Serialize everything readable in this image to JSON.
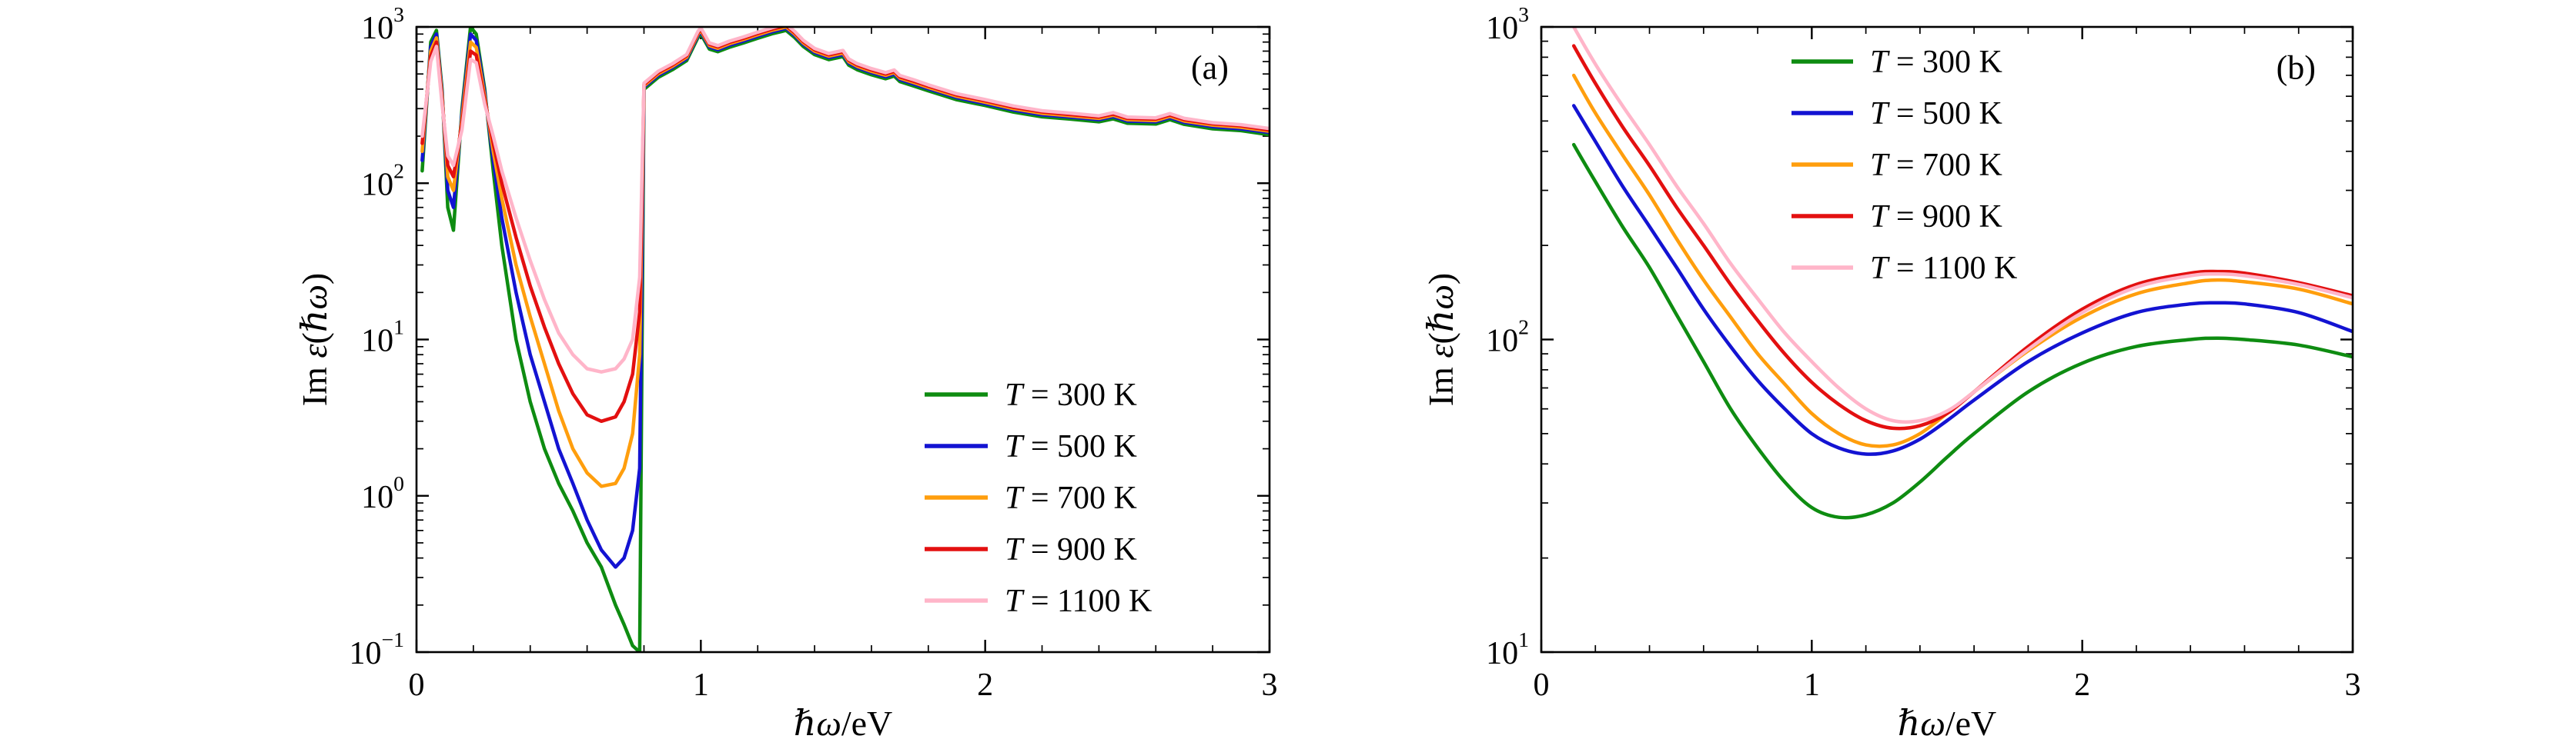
{
  "figure": {
    "background": "#ffffff",
    "axis_color": "#000000"
  },
  "chart_data": [
    {
      "type": "line",
      "panel_label": "(a)",
      "title": "",
      "xlabel": "ℏω/eV",
      "ylabel": "Im ε(ℏω)",
      "xlim": [
        0,
        3
      ],
      "ylim": [
        0.1,
        1000
      ],
      "yscale": "log",
      "x_ticks": [
        0,
        1,
        2,
        3
      ],
      "x_minor_step": 0.2,
      "grid": false,
      "legend_position": "center-right",
      "x": [
        0.02,
        0.05,
        0.07,
        0.09,
        0.11,
        0.13,
        0.16,
        0.19,
        0.21,
        0.24,
        0.27,
        0.3,
        0.35,
        0.4,
        0.45,
        0.5,
        0.55,
        0.6,
        0.65,
        0.7,
        0.73,
        0.76,
        0.785,
        0.8,
        0.85,
        0.9,
        0.95,
        0.99,
        1.0,
        1.03,
        1.06,
        1.1,
        1.15,
        1.2,
        1.25,
        1.3,
        1.33,
        1.36,
        1.4,
        1.45,
        1.5,
        1.52,
        1.55,
        1.6,
        1.65,
        1.68,
        1.7,
        1.75,
        1.8,
        1.9,
        2.0,
        2.1,
        2.2,
        2.3,
        2.4,
        2.45,
        2.5,
        2.6,
        2.65,
        2.7,
        2.8,
        2.9,
        3.0
      ],
      "series": [
        {
          "name": "T = 300 K",
          "color": "#0e8c11",
          "values": [
            120,
            800,
            950,
            400,
            70,
            50,
            300,
            1000,
            900,
            400,
            120,
            40,
            10,
            4,
            2,
            1.2,
            0.8,
            0.5,
            0.35,
            0.2,
            0.15,
            0.11,
            0.1,
            399,
            475,
            532,
            608,
            855,
            903,
            722,
            694,
            741,
            789,
            846,
            903,
            950,
            855,
            751,
            665,
            618,
            646,
            570,
            532,
            494,
            466,
            485,
            447,
            418,
            390,
            342,
            314,
            285,
            266,
            257,
            247,
            258,
            242,
            239,
            255,
            238,
            223,
            217,
            204
          ]
        },
        {
          "name": "T = 500 K",
          "color": "#1313d2",
          "values": [
            140,
            750,
            900,
            380,
            90,
            70,
            280,
            900,
            820,
            380,
            140,
            60,
            20,
            8,
            4,
            2,
            1.2,
            0.7,
            0.45,
            0.35,
            0.4,
            0.6,
            1.5,
            412,
            490,
            549,
            627,
            882,
            931,
            745,
            715,
            764,
            813,
            872,
            931,
            980,
            882,
            774,
            686,
            637,
            666,
            588,
            549,
            510,
            480,
            500,
            461,
            431,
            402,
            353,
            323,
            294,
            274,
            265,
            255,
            267,
            250,
            247,
            263,
            245,
            230,
            223,
            211
          ]
        },
        {
          "name": "T = 700 K",
          "color": "#ff9e0d",
          "values": [
            160,
            700,
            850,
            360,
            110,
            90,
            260,
            800,
            740,
            360,
            160,
            80,
            30,
            14,
            7,
            3.5,
            2,
            1.4,
            1.15,
            1.2,
            1.5,
            2.5,
            8,
            420,
            500,
            560,
            640,
            900,
            950,
            760,
            730,
            780,
            830,
            890,
            950,
            1000,
            900,
            790,
            700,
            650,
            680,
            600,
            560,
            520,
            490,
            510,
            470,
            440,
            410,
            360,
            330,
            300,
            280,
            270,
            260,
            272,
            255,
            252,
            268,
            250,
            235,
            228,
            215
          ]
        },
        {
          "name": "T = 900 K",
          "color": "#e31010",
          "values": [
            180,
            650,
            800,
            340,
            130,
            110,
            240,
            700,
            660,
            340,
            180,
            100,
            45,
            22,
            12,
            7,
            4.5,
            3.3,
            3,
            3.2,
            4,
            6,
            15,
            428,
            510,
            571,
            653,
            918,
            969,
            775,
            745,
            796,
            847,
            908,
            969,
            1020,
            918,
            806,
            714,
            663,
            694,
            612,
            571,
            530,
            500,
            520,
            479,
            449,
            418,
            367,
            337,
            306,
            286,
            275,
            265,
            277,
            260,
            257,
            273,
            255,
            240,
            233,
            219
          ]
        },
        {
          "name": "T = 1100 K",
          "color": "#ffb5c9",
          "values": [
            200,
            600,
            750,
            320,
            150,
            130,
            220,
            620,
            590,
            320,
            200,
            120,
            60,
            32,
            18,
            11,
            8,
            6.5,
            6.2,
            6.5,
            7.5,
            10,
            25,
            437,
            520,
            582,
            666,
            936,
            988,
            790,
            759,
            811,
            863,
            926,
            988,
            1040,
            936,
            822,
            728,
            676,
            707,
            624,
            582,
            541,
            510,
            530,
            489,
            458,
            426,
            374,
            343,
            312,
            291,
            281,
            270,
            283,
            265,
            262,
            279,
            260,
            244,
            237,
            224
          ]
        }
      ]
    },
    {
      "type": "line",
      "panel_label": "(b)",
      "title": "",
      "xlabel": "ℏω/eV",
      "ylabel": "Im ε(ℏω)",
      "xlim": [
        0,
        3
      ],
      "ylim": [
        10,
        1000
      ],
      "yscale": "log",
      "x_ticks": [
        0,
        1,
        2,
        3
      ],
      "x_minor_step": 0.2,
      "grid": false,
      "legend_position": "top-center",
      "x": [
        0.12,
        0.2,
        0.3,
        0.4,
        0.5,
        0.6,
        0.7,
        0.8,
        0.9,
        1.0,
        1.1,
        1.2,
        1.3,
        1.4,
        1.5,
        1.6,
        1.8,
        2.0,
        2.2,
        2.4,
        2.5,
        2.6,
        2.8,
        3.0
      ],
      "series": [
        {
          "name": "T = 300 K",
          "color": "#0e8c11",
          "values": [
            420,
            320,
            230,
            170,
            120,
            85,
            60,
            45,
            35,
            29,
            27,
            27.5,
            30,
            35,
            42,
            50,
            68,
            84,
            95,
            100,
            101,
            100,
            96,
            88
          ]
        },
        {
          "name": "T = 500 K",
          "color": "#1313d2",
          "values": [
            560,
            430,
            310,
            230,
            170,
            125,
            95,
            74,
            60,
            50,
            45,
            43,
            44,
            48,
            55,
            64,
            85,
            105,
            122,
            130,
            131,
            130,
            122,
            106
          ]
        },
        {
          "name": "T = 700 K",
          "color": "#ff9e0d",
          "values": [
            700,
            530,
            390,
            290,
            210,
            155,
            118,
            90,
            72,
            58,
            50,
            46,
            46,
            50,
            58,
            68,
            92,
            118,
            140,
            152,
            155,
            153,
            145,
            130
          ]
        },
        {
          "name": "T = 900 K",
          "color": "#e31010",
          "values": [
            870,
            660,
            480,
            360,
            265,
            200,
            150,
            115,
            90,
            73,
            62,
            55,
            52,
            53,
            58,
            68,
            95,
            125,
            150,
            163,
            165,
            163,
            152,
            138
          ]
        },
        {
          "name": "T = 1100 K",
          "color": "#ffb5c9",
          "values": [
            1000,
            760,
            560,
            420,
            310,
            235,
            175,
            135,
            105,
            85,
            70,
            60,
            55,
            55,
            59,
            68,
            93,
            122,
            147,
            160,
            162,
            160,
            150,
            136
          ]
        }
      ]
    }
  ]
}
